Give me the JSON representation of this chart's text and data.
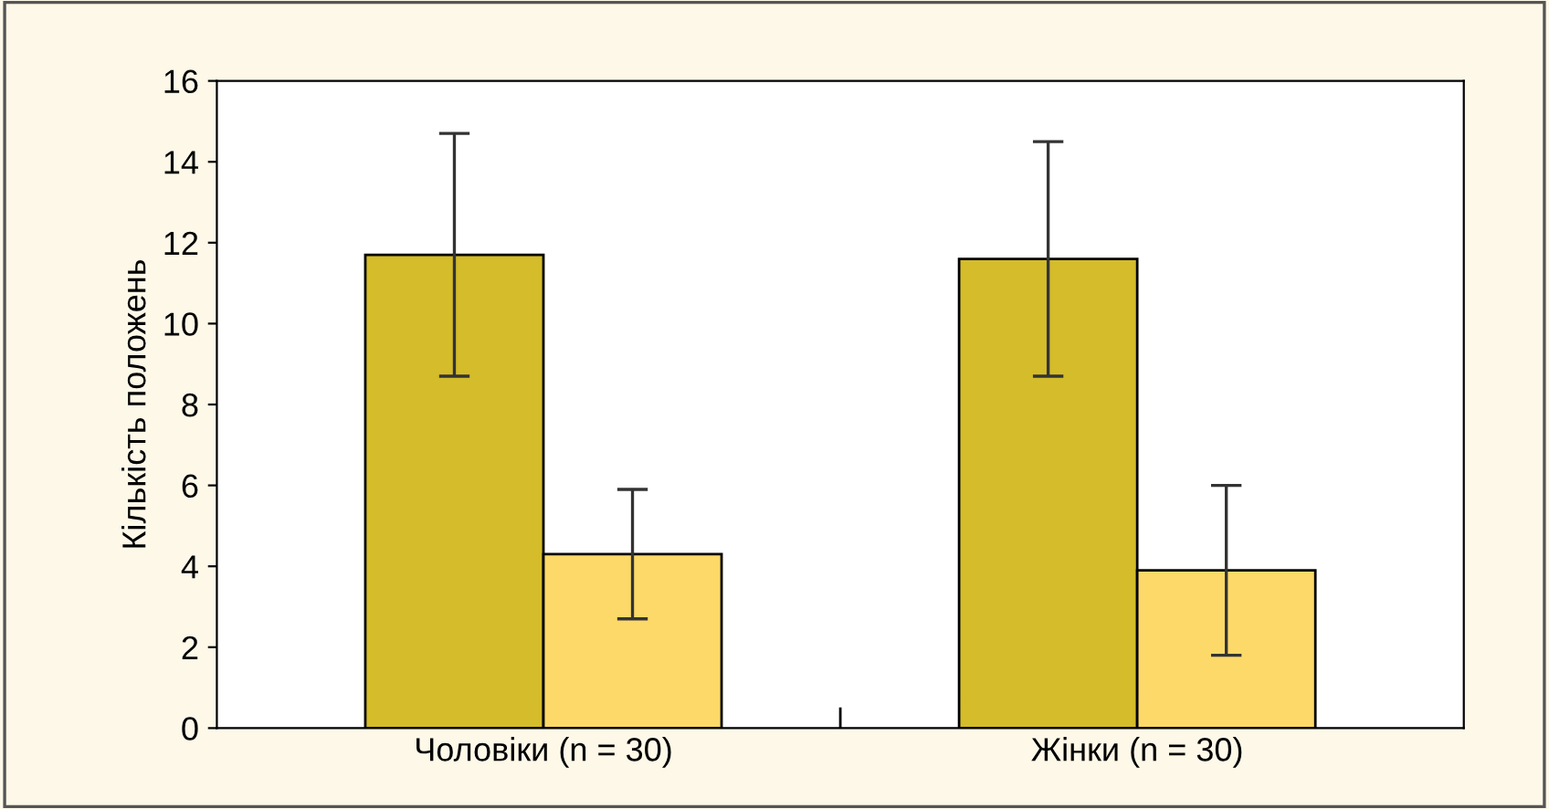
{
  "chart_data": {
    "type": "bar",
    "ylabel": "Кількість положень",
    "categories": [
      "Чоловіки (n = 30)",
      "Жінки (n = 30)"
    ],
    "series": [
      {
        "color": "#d4bc2a",
        "values": [
          11.7,
          11.6
        ],
        "errors": [
          3.0,
          2.9
        ]
      },
      {
        "color": "#fcd968",
        "values": [
          4.3,
          3.9
        ],
        "errors": [
          1.6,
          2.1
        ]
      }
    ],
    "ylim": [
      0,
      16
    ],
    "yticks": [
      0,
      2,
      4,
      6,
      8,
      10,
      12,
      14,
      16
    ],
    "grid": false,
    "legend": false
  }
}
